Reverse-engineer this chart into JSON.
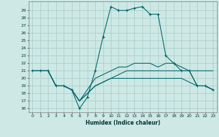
{
  "title": "",
  "xlabel": "Humidex (Indice chaleur)",
  "xlim": [
    -0.5,
    23.5
  ],
  "ylim": [
    15.5,
    30.2
  ],
  "yticks": [
    16,
    17,
    18,
    19,
    20,
    21,
    22,
    23,
    24,
    25,
    26,
    27,
    28,
    29
  ],
  "xticks": [
    0,
    1,
    2,
    3,
    4,
    5,
    6,
    7,
    8,
    9,
    10,
    11,
    12,
    13,
    14,
    15,
    16,
    17,
    18,
    19,
    20,
    21,
    22,
    23
  ],
  "background_color": "#cde8e5",
  "grid_color": "#aacfcc",
  "line_color": "#006666",
  "lines": [
    {
      "x": [
        0,
        1,
        2,
        3,
        4,
        5,
        6,
        7,
        8,
        9,
        10,
        11,
        12,
        13,
        14,
        15,
        16,
        17,
        18,
        19,
        20,
        21,
        22,
        23
      ],
      "y": [
        21,
        21,
        21,
        19,
        19,
        18.5,
        16,
        17.5,
        21,
        25.5,
        29.5,
        29,
        29,
        29.3,
        29.5,
        28.5,
        28.5,
        23,
        22,
        21,
        21,
        19,
        19,
        18.5
      ],
      "marker": "+"
    },
    {
      "x": [
        0,
        1,
        2,
        3,
        4,
        5,
        6,
        7,
        8,
        9,
        10,
        11,
        12,
        13,
        14,
        15,
        16,
        17,
        18,
        19,
        20,
        21,
        22,
        23
      ],
      "y": [
        21,
        21,
        21,
        19,
        19,
        18.5,
        17,
        18.5,
        20,
        20.5,
        21,
        21.5,
        21.5,
        22,
        22,
        22,
        21.5,
        22,
        22,
        21.5,
        21,
        19,
        19,
        18.5
      ],
      "marker": null
    },
    {
      "x": [
        0,
        1,
        2,
        3,
        4,
        5,
        6,
        7,
        8,
        9,
        10,
        11,
        12,
        13,
        14,
        15,
        16,
        17,
        18,
        19,
        20,
        21,
        22,
        23
      ],
      "y": [
        21,
        21,
        21,
        19,
        19,
        18.5,
        17,
        18,
        19,
        19.5,
        20,
        20.5,
        21,
        21,
        21,
        21,
        21,
        21,
        21,
        21,
        21,
        21,
        21,
        21
      ],
      "marker": null
    },
    {
      "x": [
        0,
        1,
        2,
        3,
        4,
        5,
        6,
        7,
        8,
        9,
        10,
        11,
        12,
        13,
        14,
        15,
        16,
        17,
        18,
        19,
        20,
        21,
        22,
        23
      ],
      "y": [
        21,
        21,
        21,
        19,
        19,
        18.5,
        17,
        18,
        19,
        19.5,
        20,
        20,
        20,
        20,
        20,
        20,
        20,
        20,
        20,
        20,
        19.5,
        19,
        19,
        18.5
      ],
      "marker": null
    }
  ]
}
